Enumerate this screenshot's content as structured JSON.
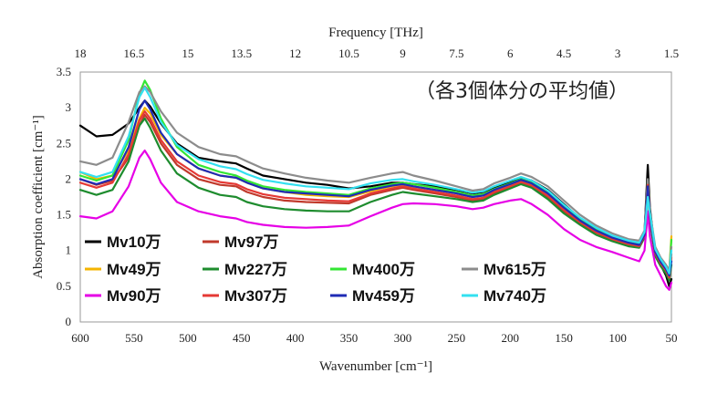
{
  "chart_data": {
    "type": "line",
    "note": "（各3個体分の平均値）",
    "xlabel_bottom": "Wavenumber [cm⁻¹]",
    "xlabel_top": "Frequency [THz]",
    "ylabel": "Absorption coefficient [cm⁻¹]",
    "xlim": [
      600,
      50
    ],
    "ylim": [
      0,
      3.5
    ],
    "x_ticks": [
      600,
      550,
      500,
      450,
      400,
      350,
      300,
      250,
      200,
      150,
      100,
      50
    ],
    "y_ticks": [
      0,
      0.5,
      1,
      1.5,
      2,
      2.5,
      3,
      3.5
    ],
    "top_ticks": [
      "18",
      "16.5",
      "15",
      "13.5",
      "12",
      "10.5",
      "9",
      "7.5",
      "6",
      "4.5",
      "3",
      "1.5"
    ],
    "grid": false,
    "legend_placement": "lower-left",
    "x": [
      600,
      585,
      570,
      555,
      545,
      540,
      535,
      525,
      510,
      490,
      470,
      455,
      445,
      430,
      410,
      390,
      370,
      350,
      330,
      310,
      300,
      290,
      270,
      250,
      235,
      225,
      215,
      200,
      190,
      180,
      165,
      150,
      135,
      120,
      105,
      90,
      80,
      75,
      72,
      70,
      65,
      60,
      55,
      52,
      50
    ],
    "series": [
      {
        "name": "Mv10万",
        "color": "#000000",
        "values": [
          2.75,
          2.6,
          2.62,
          2.78,
          3.0,
          3.1,
          3.02,
          2.78,
          2.5,
          2.3,
          2.25,
          2.22,
          2.15,
          2.05,
          2.0,
          1.95,
          1.92,
          1.87,
          1.9,
          1.95,
          1.95,
          1.93,
          1.9,
          1.85,
          1.8,
          1.82,
          1.88,
          1.95,
          2.02,
          1.98,
          1.85,
          1.65,
          1.45,
          1.3,
          1.2,
          1.12,
          1.1,
          1.25,
          2.2,
          1.6,
          0.95,
          0.8,
          0.65,
          0.5,
          0.6
        ]
      },
      {
        "name": "Mv97万",
        "color": "#c0392b",
        "values": [
          2.0,
          1.92,
          1.98,
          2.3,
          2.75,
          2.9,
          2.8,
          2.5,
          2.2,
          2.0,
          1.92,
          1.9,
          1.82,
          1.75,
          1.7,
          1.68,
          1.67,
          1.66,
          1.78,
          1.85,
          1.88,
          1.85,
          1.8,
          1.75,
          1.7,
          1.72,
          1.8,
          1.88,
          1.95,
          1.9,
          1.75,
          1.55,
          1.38,
          1.25,
          1.15,
          1.08,
          1.05,
          1.2,
          1.9,
          1.45,
          0.95,
          0.8,
          0.7,
          0.6,
          0.95
        ]
      },
      {
        "name": "Mv49万",
        "color": "#f4b400",
        "values": [
          2.1,
          2.0,
          2.05,
          2.4,
          2.85,
          3.0,
          2.92,
          2.62,
          2.35,
          2.15,
          2.05,
          2.02,
          1.95,
          1.87,
          1.82,
          1.78,
          1.76,
          1.75,
          1.83,
          1.9,
          1.92,
          1.9,
          1.85,
          1.8,
          1.75,
          1.77,
          1.84,
          1.92,
          1.98,
          1.93,
          1.8,
          1.6,
          1.42,
          1.28,
          1.17,
          1.1,
          1.08,
          1.22,
          1.95,
          1.5,
          1.0,
          0.85,
          0.75,
          0.7,
          1.2
        ]
      },
      {
        "name": "Mv227万",
        "color": "#1e8c2e",
        "values": [
          1.85,
          1.78,
          1.85,
          2.25,
          2.75,
          2.85,
          2.72,
          2.4,
          2.08,
          1.88,
          1.78,
          1.75,
          1.68,
          1.62,
          1.58,
          1.56,
          1.55,
          1.55,
          1.68,
          1.78,
          1.82,
          1.8,
          1.76,
          1.72,
          1.68,
          1.7,
          1.78,
          1.87,
          1.93,
          1.88,
          1.72,
          1.52,
          1.36,
          1.22,
          1.13,
          1.06,
          1.04,
          1.18,
          1.85,
          1.4,
          0.92,
          0.78,
          0.68,
          0.58,
          0.8
        ]
      },
      {
        "name": "Mv400万",
        "color": "#33e633",
        "values": [
          2.05,
          1.98,
          2.05,
          2.55,
          3.2,
          3.38,
          3.25,
          2.85,
          2.45,
          2.2,
          2.1,
          2.05,
          1.98,
          1.9,
          1.85,
          1.82,
          1.8,
          1.78,
          1.87,
          1.93,
          1.95,
          1.93,
          1.88,
          1.82,
          1.77,
          1.79,
          1.86,
          1.94,
          2.0,
          1.95,
          1.82,
          1.62,
          1.44,
          1.3,
          1.19,
          1.12,
          1.1,
          1.24,
          1.98,
          1.5,
          1.02,
          0.88,
          0.78,
          0.7,
          1.15
        ]
      },
      {
        "name": "Mv615万",
        "color": "#8c8c8c",
        "values": [
          2.25,
          2.2,
          2.3,
          2.8,
          3.22,
          3.3,
          3.22,
          2.95,
          2.65,
          2.45,
          2.35,
          2.32,
          2.25,
          2.15,
          2.08,
          2.02,
          1.98,
          1.95,
          2.02,
          2.08,
          2.1,
          2.05,
          1.98,
          1.9,
          1.84,
          1.86,
          1.94,
          2.02,
          2.08,
          2.03,
          1.9,
          1.7,
          1.5,
          1.35,
          1.24,
          1.16,
          1.14,
          1.28,
          2.0,
          1.55,
          1.05,
          0.9,
          0.8,
          0.72,
          1.05
        ]
      },
      {
        "name": "Mv90万",
        "color": "#e600e6",
        "values": [
          1.48,
          1.45,
          1.55,
          1.9,
          2.3,
          2.4,
          2.28,
          1.95,
          1.68,
          1.55,
          1.48,
          1.45,
          1.4,
          1.36,
          1.33,
          1.32,
          1.33,
          1.35,
          1.48,
          1.6,
          1.65,
          1.66,
          1.65,
          1.62,
          1.58,
          1.6,
          1.65,
          1.7,
          1.72,
          1.65,
          1.5,
          1.3,
          1.15,
          1.05,
          0.98,
          0.9,
          0.85,
          1.0,
          1.55,
          1.2,
          0.8,
          0.65,
          0.5,
          0.45,
          0.55
        ]
      },
      {
        "name": "Mv307万",
        "color": "#e53935",
        "values": [
          1.95,
          1.88,
          1.95,
          2.35,
          2.82,
          2.95,
          2.85,
          2.55,
          2.25,
          2.05,
          1.96,
          1.93,
          1.86,
          1.79,
          1.74,
          1.72,
          1.7,
          1.69,
          1.8,
          1.87,
          1.9,
          1.87,
          1.82,
          1.77,
          1.72,
          1.74,
          1.82,
          1.9,
          1.96,
          1.91,
          1.77,
          1.57,
          1.4,
          1.26,
          1.16,
          1.09,
          1.06,
          1.21,
          1.92,
          1.46,
          0.96,
          0.82,
          0.72,
          0.62,
          0.9
        ]
      },
      {
        "name": "Mv459万",
        "color": "#1f2bb5",
        "values": [
          2.0,
          1.93,
          2.0,
          2.45,
          2.98,
          3.1,
          2.98,
          2.65,
          2.35,
          2.15,
          2.05,
          2.02,
          1.95,
          1.87,
          1.82,
          1.8,
          1.78,
          1.76,
          1.85,
          1.91,
          1.93,
          1.9,
          1.85,
          1.8,
          1.75,
          1.77,
          1.85,
          1.93,
          1.99,
          1.94,
          1.8,
          1.6,
          1.42,
          1.28,
          1.18,
          1.11,
          1.08,
          1.22,
          1.9,
          1.48,
          0.98,
          0.84,
          0.74,
          0.65,
          0.85
        ]
      },
      {
        "name": "Mv740万",
        "color": "#33e0f0",
        "values": [
          2.1,
          2.03,
          2.1,
          2.6,
          3.15,
          3.28,
          3.15,
          2.8,
          2.48,
          2.28,
          2.18,
          2.14,
          2.07,
          1.99,
          1.94,
          1.9,
          1.88,
          1.86,
          1.94,
          1.99,
          2.0,
          1.97,
          1.92,
          1.86,
          1.81,
          1.83,
          1.9,
          1.98,
          2.03,
          1.98,
          1.84,
          1.64,
          1.46,
          1.32,
          1.21,
          1.14,
          1.11,
          1.26,
          1.75,
          1.52,
          1.02,
          0.88,
          0.77,
          0.68,
          1.0
        ]
      }
    ],
    "legend": [
      {
        "label": "Mv10万",
        "color": "#000000",
        "col": 0,
        "row": 0
      },
      {
        "label": "Mv97万",
        "color": "#c0392b",
        "col": 1,
        "row": 0
      },
      {
        "label": "Mv49万",
        "color": "#f4b400",
        "col": 0,
        "row": 1
      },
      {
        "label": "Mv227万",
        "color": "#1e8c2e",
        "col": 1,
        "row": 1
      },
      {
        "label": "Mv400万",
        "color": "#33e633",
        "col": 2,
        "row": 1
      },
      {
        "label": "Mv615万",
        "color": "#8c8c8c",
        "col": 3,
        "row": 1
      },
      {
        "label": "Mv90万",
        "color": "#e600e6",
        "col": 0,
        "row": 2
      },
      {
        "label": "Mv307万",
        "color": "#e53935",
        "col": 1,
        "row": 2
      },
      {
        "label": "Mv459万",
        "color": "#1f2bb5",
        "col": 2,
        "row": 2
      },
      {
        "label": "Mv740万",
        "color": "#33e0f0",
        "col": 3,
        "row": 2
      }
    ]
  }
}
